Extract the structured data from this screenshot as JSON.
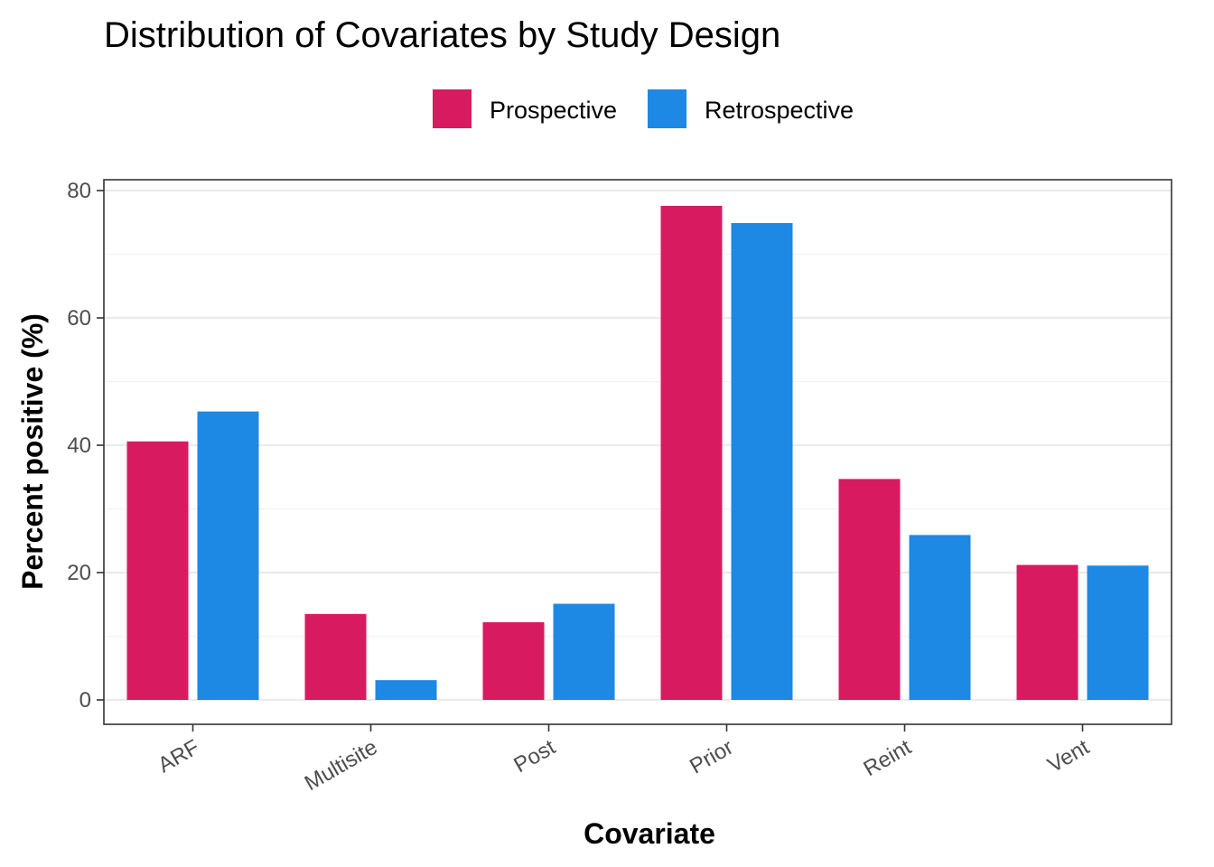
{
  "chart_data": {
    "type": "bar",
    "title": "Distribution of Covariates by Study Design",
    "xlabel": "Covariate",
    "ylabel": "Percent positive (%)",
    "categories": [
      "ARF",
      "Multisite",
      "Post",
      "Prior",
      "Reint",
      "Vent"
    ],
    "series": [
      {
        "name": "Prospective",
        "color": "#D81B60",
        "values": [
          40.6,
          13.5,
          12.2,
          77.6,
          34.7,
          21.2
        ]
      },
      {
        "name": "Retrospective",
        "color": "#1E88E5",
        "values": [
          45.3,
          3.1,
          15.1,
          74.9,
          25.9,
          21.1
        ]
      }
    ],
    "ylim": [
      0,
      80
    ],
    "yticks": [
      0,
      20,
      40,
      60,
      80
    ],
    "ytick_labels": [
      "0",
      "20",
      "40",
      "60",
      "80"
    ],
    "grid": true,
    "legend_position": "top"
  }
}
